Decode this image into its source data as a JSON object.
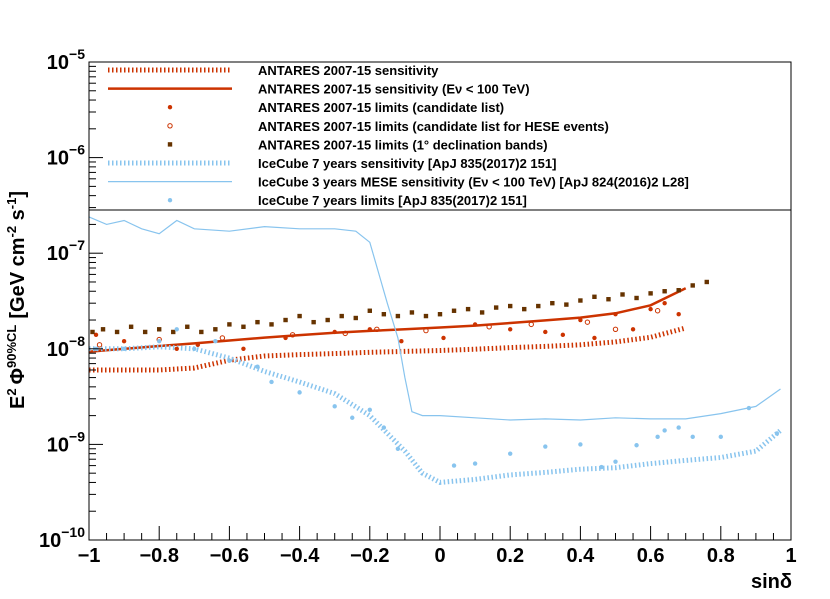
{
  "chart_data": {
    "type": "line",
    "xlabel": "sinδ",
    "ylabel": "E² Φ^{90%CL} [GeV cm⁻² s⁻¹]",
    "ylabel_parts": {
      "e": "E",
      "e_sup": "2",
      "phi": "Φ",
      "phi_sup": "90%CL",
      "bracket_open": "[GeV cm",
      "cm_sup": "-2",
      "s": " s",
      "s_sup": "-1",
      "bracket_close": "]"
    },
    "xlim": [
      -1,
      1
    ],
    "ylim": [
      1e-10,
      1e-05
    ],
    "yscale": "log",
    "x_ticks": [
      {
        "value": -1,
        "label": "−1"
      },
      {
        "value": -0.8,
        "label": "−0.8"
      },
      {
        "value": -0.6,
        "label": "−0.6"
      },
      {
        "value": -0.4,
        "label": "−0.4"
      },
      {
        "value": -0.2,
        "label": "−0.2"
      },
      {
        "value": 0,
        "label": "0"
      },
      {
        "value": 0.2,
        "label": "0.2"
      },
      {
        "value": 0.4,
        "label": "0.4"
      },
      {
        "value": 0.6,
        "label": "0.6"
      },
      {
        "value": 0.8,
        "label": "0.8"
      },
      {
        "value": 1,
        "label": "1"
      }
    ],
    "y_ticks": [
      {
        "exp": -10,
        "base": "10",
        "sup": "−10"
      },
      {
        "exp": -9,
        "base": "10",
        "sup": "−9"
      },
      {
        "exp": -8,
        "base": "10",
        "sup": "−8"
      },
      {
        "exp": -7,
        "base": "10",
        "sup": "−7"
      },
      {
        "exp": -6,
        "base": "10",
        "sup": "−6"
      },
      {
        "exp": -5,
        "base": "10",
        "sup": "−5"
      }
    ],
    "legend": [
      {
        "label": "ANTARES 2007-15 sensitivity",
        "style": "dotted-thick",
        "color": "#cc3300"
      },
      {
        "label": "ANTARES 2007-15 sensitivity (Eν < 100 TeV)",
        "style": "solid-thick",
        "color": "#cc3300"
      },
      {
        "label": "ANTARES 2007-15 limits (candidate list)",
        "style": "filled-dot",
        "color": "#cc3300"
      },
      {
        "label": "ANTARES 2007-15 limits (candidate list for HESE events)",
        "style": "open-dot",
        "color": "#cc3300"
      },
      {
        "label": "ANTARES 2007-15 limits (1° declination bands)",
        "style": "square",
        "color": "#663300"
      },
      {
        "label": "IceCube 7 years sensitivity [ApJ 835(2017)2 151]",
        "style": "dotted-thick",
        "color": "#88c4ee"
      },
      {
        "label": "IceCube 3 years MESE sensitivity (Eν < 100 TeV) [ApJ 824(2016)2 L28]",
        "style": "solid-thin",
        "color": "#88c4ee"
      },
      {
        "label": "IceCube 7 years limits [ApJ 835(2017)2 151]",
        "style": "filled-dot",
        "color": "#88c4ee"
      }
    ],
    "series": [
      {
        "name": "ANTARES 2007-15 sensitivity",
        "kind": "dotted-line",
        "color": "#cc3300",
        "x": [
          -1,
          -0.9,
          -0.8,
          -0.7,
          -0.6,
          -0.5,
          -0.4,
          -0.3,
          -0.2,
          -0.1,
          0,
          0.1,
          0.2,
          0.3,
          0.4,
          0.5,
          0.6,
          0.7
        ],
        "y": [
          6e-09,
          6e-09,
          6e-09,
          6.3e-09,
          7.6e-09,
          8.4e-09,
          8.7e-09,
          8.9e-09,
          9.2e-09,
          9.4e-09,
          9.6e-09,
          9.9e-09,
          1.03e-08,
          1.06e-08,
          1.1e-08,
          1.18e-08,
          1.32e-08,
          1.65e-08
        ]
      },
      {
        "name": "ANTARES 2007-15 sensitivity (Eν < 100 TeV)",
        "kind": "solid-line",
        "color": "#cc3300",
        "x": [
          -1,
          -0.9,
          -0.8,
          -0.7,
          -0.6,
          -0.5,
          -0.4,
          -0.3,
          -0.2,
          -0.1,
          0,
          0.1,
          0.2,
          0.3,
          0.4,
          0.5,
          0.6,
          0.7
        ],
        "y": [
          9.3e-09,
          1e-08,
          1.07e-08,
          1.14e-08,
          1.22e-08,
          1.31e-08,
          1.39e-08,
          1.47e-08,
          1.54e-08,
          1.6e-08,
          1.67e-08,
          1.75e-08,
          1.86e-08,
          1.98e-08,
          2.12e-08,
          2.35e-08,
          2.85e-08,
          4.3e-08
        ]
      },
      {
        "name": "IceCube 7 years sensitivity",
        "kind": "dotted-line",
        "color": "#88c4ee",
        "x": [
          -1,
          -0.9,
          -0.8,
          -0.7,
          -0.6,
          -0.5,
          -0.4,
          -0.3,
          -0.2,
          -0.1,
          -0.05,
          0,
          0.1,
          0.2,
          0.3,
          0.4,
          0.5,
          0.6,
          0.7,
          0.8,
          0.9,
          0.97
        ],
        "y": [
          1e-08,
          1e-08,
          1.05e-08,
          1e-08,
          8e-09,
          5.8e-09,
          4.5e-09,
          3.4e-09,
          2e-09,
          8.5e-10,
          5e-10,
          4e-10,
          4.3e-10,
          4.8e-10,
          5.1e-10,
          5.5e-10,
          5.7e-10,
          6.3e-10,
          6.8e-10,
          7.3e-10,
          8.5e-10,
          1.4e-09
        ]
      },
      {
        "name": "IceCube 3 years MESE sensitivity (Eν < 100 TeV)",
        "kind": "thin-line",
        "color": "#88c4ee",
        "x": [
          -1,
          -0.95,
          -0.9,
          -0.85,
          -0.8,
          -0.75,
          -0.7,
          -0.6,
          -0.5,
          -0.4,
          -0.3,
          -0.24,
          -0.2,
          -0.15,
          -0.12,
          -0.1,
          -0.08,
          -0.05,
          0,
          0.1,
          0.2,
          0.3,
          0.4,
          0.5,
          0.6,
          0.7,
          0.8,
          0.9,
          0.97
        ],
        "y": [
          2.4e-07,
          2e-07,
          2.2e-07,
          1.8e-07,
          1.6e-07,
          2.2e-07,
          1.8e-07,
          1.7e-07,
          1.9e-07,
          1.8e-07,
          1.8e-07,
          1.7e-07,
          1.3e-07,
          3e-08,
          1.3e-08,
          5e-09,
          2.2e-09,
          2e-09,
          2e-09,
          1.9e-09,
          1.8e-09,
          1.85e-09,
          1.8e-09,
          1.9e-09,
          1.85e-09,
          1.85e-09,
          2.1e-09,
          2.5e-09,
          3.8e-09
        ]
      },
      {
        "name": "ANTARES 2007-15 limits (candidate list)",
        "kind": "filled-dots",
        "color": "#cc3300",
        "x": [
          -0.98,
          -0.9,
          -0.75,
          -0.69,
          -0.56,
          -0.44,
          -0.3,
          -0.2,
          -0.11,
          0.01,
          0.1,
          0.2,
          0.3,
          0.35,
          0.4,
          0.44,
          0.5,
          0.55,
          0.6,
          0.64,
          0.68
        ],
        "y": [
          1.4e-08,
          1.2e-08,
          1e-08,
          1.1e-08,
          1e-08,
          1.3e-08,
          1.5e-08,
          1.6e-08,
          1.2e-08,
          1.3e-08,
          1.8e-08,
          1.6e-08,
          1.5e-08,
          1.4e-08,
          2e-08,
          1.3e-08,
          2.3e-08,
          1.6e-08,
          2.6e-08,
          3e-08,
          2.3e-08
        ]
      },
      {
        "name": "ANTARES 2007-15 limits (candidate list for HESE events)",
        "kind": "open-dots",
        "color": "#cc3300",
        "x": [
          -0.97,
          -0.8,
          -0.62,
          -0.42,
          -0.27,
          -0.18,
          -0.04,
          0.14,
          0.26,
          0.42,
          0.5,
          0.62
        ],
        "y": [
          1.1e-08,
          1.25e-08,
          1.3e-08,
          1.4e-08,
          1.45e-08,
          1.6e-08,
          1.55e-08,
          1.7e-08,
          1.8e-08,
          1.9e-08,
          1.6e-08,
          2.5e-08
        ]
      },
      {
        "name": "ANTARES 2007-15 limits (1° declination bands)",
        "kind": "squares",
        "color": "#663300",
        "x": [
          -0.99,
          -0.96,
          -0.92,
          -0.88,
          -0.84,
          -0.8,
          -0.76,
          -0.72,
          -0.68,
          -0.64,
          -0.6,
          -0.56,
          -0.52,
          -0.48,
          -0.44,
          -0.4,
          -0.36,
          -0.32,
          -0.28,
          -0.24,
          -0.2,
          -0.16,
          -0.12,
          -0.08,
          -0.04,
          0,
          0.04,
          0.08,
          0.12,
          0.16,
          0.2,
          0.24,
          0.28,
          0.32,
          0.36,
          0.4,
          0.44,
          0.48,
          0.52,
          0.56,
          0.6,
          0.64,
          0.68,
          0.72,
          0.76
        ],
        "y": [
          1.5e-08,
          1.6e-08,
          1.5e-08,
          1.7e-08,
          1.5e-08,
          1.6e-08,
          1.5e-08,
          1.7e-08,
          1.5e-08,
          1.6e-08,
          1.8e-08,
          1.7e-08,
          1.9e-08,
          1.8e-08,
          2e-08,
          2.2e-08,
          1.9e-08,
          2e-08,
          2.2e-08,
          2.1e-08,
          2.5e-08,
          2.3e-08,
          2.2e-08,
          2.4e-08,
          2.2e-08,
          2.3e-08,
          2.5e-08,
          2.6e-08,
          2.4e-08,
          2.7e-08,
          2.8e-08,
          2.6e-08,
          2.8e-08,
          3e-08,
          2.9e-08,
          3.2e-08,
          3.5e-08,
          3.3e-08,
          3.7e-08,
          3.4e-08,
          3.8e-08,
          4e-08,
          4.1e-08,
          4.6e-08,
          5e-08
        ]
      },
      {
        "name": "IceCube 7 years limits",
        "kind": "filled-dots",
        "color": "#88c4ee",
        "x": [
          -0.98,
          -0.9,
          -0.8,
          -0.75,
          -0.7,
          -0.64,
          -0.6,
          -0.52,
          -0.48,
          -0.4,
          -0.3,
          -0.25,
          -0.2,
          -0.16,
          -0.12,
          0.04,
          0.1,
          0.2,
          0.3,
          0.4,
          0.46,
          0.5,
          0.56,
          0.62,
          0.64,
          0.68,
          0.72,
          0.8,
          0.88,
          0.96
        ],
        "y": [
          1e-08,
          1e-08,
          1.2e-08,
          1.6e-08,
          1e-08,
          1.2e-08,
          7.5e-09,
          6.5e-09,
          4.5e-09,
          3.5e-09,
          2.5e-09,
          1.9e-09,
          2.3e-09,
          1.5e-09,
          9e-10,
          6e-10,
          6.3e-10,
          8e-10,
          9.5e-10,
          1e-09,
          5.8e-10,
          6.6e-10,
          9.8e-10,
          1.2e-09,
          1.4e-09,
          1.5e-09,
          1.2e-09,
          1.2e-09,
          2.4e-09,
          1.3e-09
        ]
      }
    ]
  }
}
